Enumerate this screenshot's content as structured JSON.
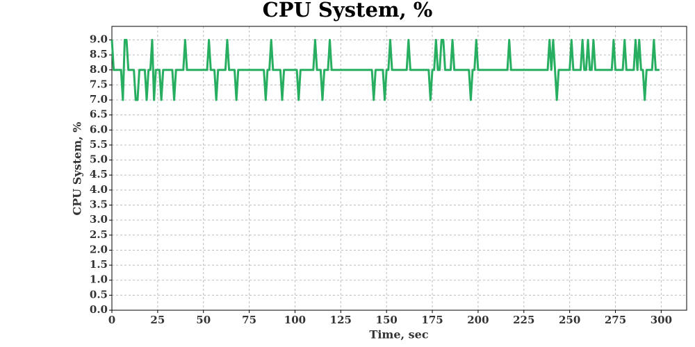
{
  "chart_data": {
    "type": "line",
    "title": "CPU System, %",
    "xlabel": "Time, sec",
    "ylabel": "CPU System, %",
    "color": "#27ae60",
    "grid": true,
    "xlim": [
      0,
      313.9
    ],
    "ylim": [
      0,
      9.45
    ],
    "xticks": [
      0,
      25,
      50,
      75,
      100,
      125,
      150,
      175,
      200,
      225,
      250,
      275,
      300
    ],
    "yticks": [
      {
        "value": 0,
        "label": "0.0"
      },
      0.5,
      {
        "value": 1,
        "label": "1.0"
      },
      1.5,
      {
        "value": 2,
        "label": "2.0"
      },
      2.5,
      {
        "value": 3,
        "label": "3.0"
      },
      3.5,
      {
        "value": 4,
        "label": "4.0"
      },
      4.5,
      {
        "value": 5,
        "label": "5.0"
      },
      5.5,
      {
        "value": 6,
        "label": "6.0"
      },
      6.5,
      {
        "value": 7,
        "label": "7.0"
      },
      7.5,
      {
        "value": 8,
        "label": "8.0"
      },
      8.5,
      {
        "value": 9,
        "label": "9.0"
      }
    ],
    "x": [
      0,
      1,
      2,
      3,
      4,
      5,
      6,
      7,
      8,
      9,
      10,
      11,
      12,
      13,
      14,
      15,
      16,
      17,
      18,
      19,
      20,
      21,
      22,
      23,
      24,
      25,
      26,
      27,
      28,
      29,
      30,
      31,
      32,
      33,
      34,
      35,
      36,
      37,
      38,
      39,
      40,
      41,
      42,
      43,
      44,
      45,
      46,
      47,
      48,
      49,
      50,
      51,
      52,
      53,
      54,
      55,
      56,
      57,
      58,
      59,
      60,
      61,
      62,
      63,
      64,
      65,
      66,
      67,
      68,
      69,
      70,
      71,
      72,
      73,
      74,
      75,
      76,
      77,
      78,
      79,
      80,
      81,
      82,
      83,
      84,
      85,
      86,
      87,
      88,
      89,
      90,
      91,
      92,
      93,
      94,
      95,
      96,
      97,
      98,
      99,
      100,
      101,
      102,
      103,
      104,
      105,
      106,
      107,
      108,
      109,
      110,
      111,
      112,
      113,
      114,
      115,
      116,
      117,
      118,
      119,
      120,
      121,
      122,
      123,
      124,
      125,
      126,
      127,
      128,
      129,
      130,
      131,
      132,
      133,
      134,
      135,
      136,
      137,
      138,
      139,
      140,
      141,
      142,
      143,
      144,
      145,
      146,
      147,
      148,
      149,
      150,
      151,
      152,
      153,
      154,
      155,
      156,
      157,
      158,
      159,
      160,
      161,
      162,
      163,
      164,
      165,
      166,
      167,
      168,
      169,
      170,
      171,
      172,
      173,
      174,
      175,
      176,
      177,
      178,
      179,
      180,
      181,
      182,
      183,
      184,
      185,
      186,
      187,
      188,
      189,
      190,
      191,
      192,
      193,
      194,
      195,
      196,
      197,
      198,
      199,
      200,
      201,
      202,
      203,
      204,
      205,
      206,
      207,
      208,
      209,
      210,
      211,
      212,
      213,
      214,
      215,
      216,
      217,
      218,
      219,
      220,
      221,
      222,
      223,
      224,
      225,
      226,
      227,
      228,
      229,
      230,
      231,
      232,
      233,
      234,
      235,
      236,
      237,
      238,
      239,
      240,
      241,
      242,
      243,
      244,
      245,
      246,
      247,
      248,
      249,
      250,
      251,
      252,
      253,
      254,
      255,
      256,
      257,
      258,
      259,
      260,
      261,
      262,
      263,
      264,
      265,
      266,
      267,
      268,
      269,
      270,
      271,
      272,
      273,
      274,
      275,
      276,
      277,
      278,
      279,
      280,
      281,
      282,
      283,
      284,
      285,
      286,
      287,
      288,
      289,
      290,
      291,
      292,
      293,
      294,
      295,
      296,
      297,
      298,
      299
    ],
    "values": [
      9,
      8,
      8,
      8,
      8,
      8,
      7,
      9,
      9,
      8,
      8,
      8,
      8,
      7,
      7,
      8,
      8,
      8,
      8,
      7,
      8,
      8,
      9,
      7,
      8,
      8,
      8,
      7,
      8,
      8,
      8,
      8,
      8,
      8,
      7,
      8,
      8,
      8,
      8,
      8,
      9,
      8,
      8,
      8,
      8,
      8,
      8,
      8,
      8,
      8,
      8,
      8,
      8,
      9,
      8,
      8,
      8,
      7,
      8,
      8,
      8,
      8,
      8,
      9,
      8,
      8,
      8,
      8,
      7,
      8,
      8,
      8,
      8,
      8,
      8,
      8,
      8,
      8,
      8,
      8,
      8,
      8,
      8,
      8,
      7,
      8,
      8,
      9,
      8,
      8,
      8,
      8,
      8,
      7,
      8,
      8,
      8,
      8,
      8,
      8,
      8,
      8,
      7,
      8,
      8,
      8,
      8,
      8,
      8,
      8,
      8,
      9,
      8,
      8,
      8,
      7,
      8,
      8,
      8,
      9,
      8,
      8,
      8,
      8,
      8,
      8,
      8,
      8,
      8,
      8,
      8,
      8,
      8,
      8,
      8,
      8,
      8,
      8,
      8,
      8,
      8,
      8,
      8,
      7,
      8,
      8,
      8,
      8,
      8,
      7,
      8,
      8,
      9,
      8,
      8,
      8,
      8,
      8,
      8,
      8,
      8,
      8,
      9,
      8,
      8,
      8,
      8,
      8,
      8,
      8,
      8,
      8,
      8,
      8,
      7,
      8,
      8,
      9,
      8,
      8,
      9,
      9,
      8,
      8,
      8,
      8,
      9,
      8,
      8,
      8,
      8,
      8,
      8,
      8,
      8,
      8,
      7,
      8,
      8,
      9,
      8,
      8,
      8,
      8,
      8,
      8,
      8,
      8,
      8,
      8,
      8,
      8,
      8,
      8,
      8,
      8,
      8,
      9,
      8,
      8,
      8,
      8,
      8,
      8,
      8,
      8,
      8,
      8,
      8,
      8,
      8,
      8,
      8,
      8,
      8,
      8,
      8,
      8,
      8,
      9,
      8,
      9,
      8,
      7,
      8,
      8,
      8,
      8,
      8,
      8,
      8,
      9,
      8,
      8,
      8,
      8,
      8,
      9,
      8,
      8,
      9,
      8,
      8,
      9,
      8,
      8,
      8,
      8,
      8,
      8,
      8,
      8,
      8,
      8,
      9,
      8,
      8,
      8,
      8,
      8,
      9,
      8,
      8,
      8,
      8,
      8,
      9,
      8,
      9,
      8,
      8,
      7,
      8,
      8,
      8,
      8,
      9,
      8,
      8,
      8
    ]
  }
}
